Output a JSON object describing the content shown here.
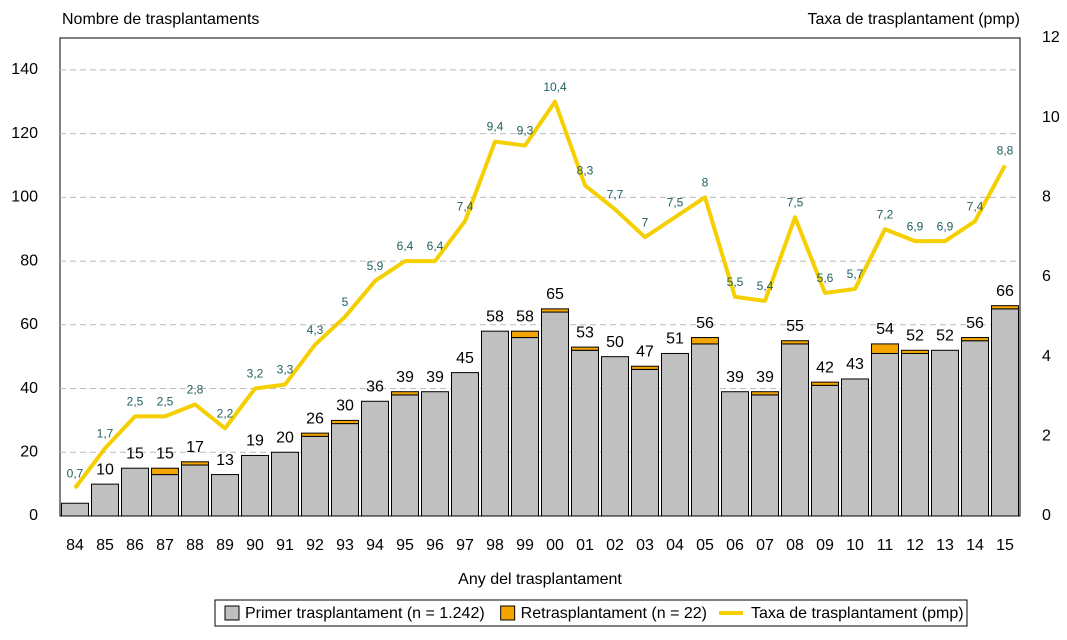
{
  "chart_data": {
    "type": "bar-line",
    "ylabel": "Nombre de trasplantaments",
    "y2label": "Taxa de trasplantament (pmp)",
    "xlabel": "Any del trasplantament",
    "categories": [
      "84",
      "85",
      "86",
      "87",
      "88",
      "89",
      "90",
      "91",
      "92",
      "93",
      "94",
      "95",
      "96",
      "97",
      "98",
      "99",
      "00",
      "01",
      "02",
      "03",
      "04",
      "05",
      "06",
      "07",
      "08",
      "09",
      "10",
      "11",
      "12",
      "13",
      "14",
      "15"
    ],
    "series": [
      {
        "name": "Primer trasplantament (n = 1.242)",
        "type": "bar",
        "color": "#c0c0c0",
        "values": [
          4,
          10,
          15,
          13,
          16,
          13,
          19,
          20,
          25,
          29,
          36,
          38,
          39,
          45,
          58,
          56,
          64,
          52,
          50,
          46,
          51,
          54,
          39,
          38,
          54,
          41,
          43,
          51,
          51,
          52,
          55,
          65
        ]
      },
      {
        "name": "Retrasplantament (n = 22)",
        "type": "bar",
        "color": "#f5a500",
        "values": [
          0,
          0,
          0,
          2,
          1,
          0,
          0,
          0,
          1,
          1,
          0,
          1,
          0,
          0,
          0,
          2,
          1,
          1,
          0,
          1,
          0,
          2,
          0,
          1,
          1,
          1,
          0,
          3,
          1,
          0,
          1,
          1
        ]
      },
      {
        "name": "Taxa de trasplantament (pmp)",
        "type": "line",
        "axis": "y2",
        "color": "#f5cf00",
        "values": [
          0.7,
          1.7,
          2.5,
          2.5,
          2.8,
          2.2,
          3.2,
          3.3,
          4.3,
          5,
          5.9,
          6.4,
          6.4,
          7.4,
          9.4,
          9.3,
          10.4,
          8.3,
          7.7,
          7,
          7.5,
          8,
          5.5,
          5.4,
          7.5,
          5.6,
          5.7,
          7.2,
          6.9,
          6.9,
          7.4,
          8.8
        ],
        "value_labels": [
          "0,7",
          "1,7",
          "2,5",
          "2,5",
          "2,8",
          "2,2",
          "3,2",
          "3,3",
          "4,3",
          "5",
          "5,9",
          "6,4",
          "6,4",
          "7,4",
          "9,4",
          "9,3",
          "10,4",
          "8,3",
          "7,7",
          "7",
          "7,5",
          "8",
          "5,5",
          "5,4",
          "7,5",
          "5,6",
          "5,7",
          "7,2",
          "6,9",
          "6,9",
          "7,4",
          "8,8"
        ]
      }
    ],
    "totals": [
      null,
      10,
      15,
      15,
      17,
      13,
      19,
      20,
      26,
      30,
      36,
      39,
      39,
      45,
      58,
      58,
      65,
      53,
      50,
      47,
      51,
      56,
      39,
      39,
      55,
      42,
      43,
      54,
      52,
      52,
      56,
      66
    ],
    "ylim": [
      0,
      150
    ],
    "yticks": [
      0,
      20,
      40,
      60,
      80,
      100,
      120,
      140
    ],
    "y2lim": [
      0,
      12
    ],
    "y2ticks": [
      0,
      2,
      4,
      6,
      8,
      10,
      12
    ],
    "grid": true
  }
}
